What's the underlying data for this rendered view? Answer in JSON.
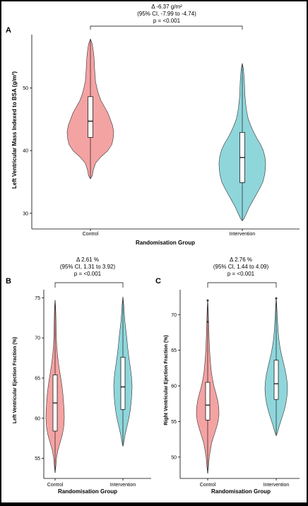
{
  "chart_data": [
    {
      "panel": "A",
      "type": "violin",
      "xlabel": "Randomisation Group",
      "ylabel": "Left Ventricular Mass Indexed to BSA (g/m²)",
      "ylim": [
        27.5,
        58.5
      ],
      "yticks": [
        30,
        40,
        50
      ],
      "categories": [
        "Control",
        "Intervention"
      ],
      "colors": [
        "#F4A3A3",
        "#8FD6DB"
      ],
      "groups": [
        {
          "name": "Control",
          "min": 35.5,
          "q1": 42.1,
          "median": 44.7,
          "q3": 48.6,
          "max": 57.8,
          "density": [
            [
              35.5,
              0.0
            ],
            [
              36.0,
              0.08
            ],
            [
              37,
              0.13
            ],
            [
              38,
              0.22
            ],
            [
              39,
              0.45
            ],
            [
              40,
              0.75
            ],
            [
              41,
              0.92
            ],
            [
              42,
              0.98
            ],
            [
              43,
              1.0
            ],
            [
              44,
              0.95
            ],
            [
              45,
              0.85
            ],
            [
              46,
              0.75
            ],
            [
              47,
              0.6
            ],
            [
              48,
              0.45
            ],
            [
              49,
              0.35
            ],
            [
              50,
              0.28
            ],
            [
              51,
              0.22
            ],
            [
              52,
              0.2
            ],
            [
              53,
              0.18
            ],
            [
              54,
              0.17
            ],
            [
              55,
              0.15
            ],
            [
              56,
              0.12
            ],
            [
              57,
              0.08
            ],
            [
              57.8,
              0.0
            ]
          ]
        },
        {
          "name": "Intervention",
          "min": 28.8,
          "q1": 34.9,
          "median": 38.9,
          "q3": 42.9,
          "max": 53.9,
          "density": [
            [
              28.8,
              0.0
            ],
            [
              29.2,
              0.08
            ],
            [
              30,
              0.18
            ],
            [
              31,
              0.3
            ],
            [
              32,
              0.45
            ],
            [
              33,
              0.6
            ],
            [
              34,
              0.75
            ],
            [
              35,
              0.88
            ],
            [
              36,
              0.95
            ],
            [
              37,
              0.99
            ],
            [
              38,
              1.0
            ],
            [
              39,
              0.97
            ],
            [
              40,
              0.9
            ],
            [
              41,
              0.78
            ],
            [
              42,
              0.62
            ],
            [
              43,
              0.48
            ],
            [
              44,
              0.36
            ],
            [
              45,
              0.26
            ],
            [
              46,
              0.2
            ],
            [
              47,
              0.16
            ],
            [
              48,
              0.13
            ],
            [
              49,
              0.11
            ],
            [
              50,
              0.1
            ],
            [
              51,
              0.09
            ],
            [
              52,
              0.07
            ],
            [
              53,
              0.05
            ],
            [
              53.9,
              0.0
            ]
          ]
        }
      ],
      "annotation": {
        "line1": "Δ -6.37 g/m²",
        "line2": "(95% CI, -7.99 to -4.74)",
        "line3": "p = <0.001"
      }
    },
    {
      "panel": "B",
      "type": "violin",
      "xlabel": "Randomisation Group",
      "ylabel": "Left Ventricular Ejection Fraction (%)",
      "ylim": [
        52.5,
        76.0
      ],
      "yticks": [
        55,
        60,
        65,
        70,
        75
      ],
      "categories": [
        "Control",
        "Intervention"
      ],
      "colors": [
        "#F4A3A3",
        "#8FD6DB"
      ],
      "groups": [
        {
          "name": "Control",
          "min": 53.2,
          "q1": 58.4,
          "median": 61.9,
          "q3": 65.4,
          "max": 74.7,
          "density": [
            [
              53.2,
              0.0
            ],
            [
              54,
              0.08
            ],
            [
              55,
              0.15
            ],
            [
              56,
              0.3
            ],
            [
              57,
              0.55
            ],
            [
              58,
              0.8
            ],
            [
              59,
              0.95
            ],
            [
              60,
              1.0
            ],
            [
              61,
              0.98
            ],
            [
              62,
              0.92
            ],
            [
              63,
              0.85
            ],
            [
              64,
              0.75
            ],
            [
              65,
              0.62
            ],
            [
              66,
              0.48
            ],
            [
              67,
              0.35
            ],
            [
              68,
              0.25
            ],
            [
              69,
              0.18
            ],
            [
              70,
              0.14
            ],
            [
              71,
              0.12
            ],
            [
              72,
              0.1
            ],
            [
              73,
              0.08
            ],
            [
              74,
              0.05
            ],
            [
              74.7,
              0.0
            ]
          ]
        },
        {
          "name": "Intervention",
          "min": 56.5,
          "q1": 61.1,
          "median": 63.9,
          "q3": 67.6,
          "max": 75.1,
          "density": [
            [
              56.5,
              0.0
            ],
            [
              57,
              0.1
            ],
            [
              58,
              0.25
            ],
            [
              59,
              0.45
            ],
            [
              60,
              0.65
            ],
            [
              61,
              0.8
            ],
            [
              62,
              0.9
            ],
            [
              63,
              0.97
            ],
            [
              64,
              1.0
            ],
            [
              65,
              0.95
            ],
            [
              66,
              0.85
            ],
            [
              67,
              0.72
            ],
            [
              68,
              0.6
            ],
            [
              69,
              0.5
            ],
            [
              70,
              0.42
            ],
            [
              71,
              0.32
            ],
            [
              72,
              0.22
            ],
            [
              73,
              0.15
            ],
            [
              74,
              0.1
            ],
            [
              75.1,
              0.0
            ]
          ]
        }
      ],
      "annotation": {
        "line1": "Δ 2.61 %",
        "line2": "(95% CI, 1.31 to 3.92)",
        "line3": "p = <0.001"
      }
    },
    {
      "panel": "C",
      "type": "violin",
      "xlabel": "Randomisation Group",
      "ylabel": "Right Ventricular Ejection Fraction (%)",
      "ylim": [
        47.0,
        73.5
      ],
      "yticks": [
        50,
        55,
        60,
        65,
        70
      ],
      "categories": [
        "Control",
        "Intervention"
      ],
      "colors": [
        "#F4A3A3",
        "#8FD6DB"
      ],
      "groups": [
        {
          "name": "Control",
          "min": 47.7,
          "q1": 55.2,
          "median": 57.3,
          "q3": 60.5,
          "max": 72.0,
          "outliers": [
            72.0,
            69.0
          ],
          "density": [
            [
              47.7,
              0.0
            ],
            [
              48.5,
              0.06
            ],
            [
              50,
              0.14
            ],
            [
              52,
              0.35
            ],
            [
              53,
              0.55
            ],
            [
              54,
              0.75
            ],
            [
              55,
              0.92
            ],
            [
              56,
              1.0
            ],
            [
              57,
              0.98
            ],
            [
              58,
              0.88
            ],
            [
              59,
              0.72
            ],
            [
              60,
              0.55
            ],
            [
              61,
              0.42
            ],
            [
              62,
              0.32
            ],
            [
              63,
              0.26
            ],
            [
              64,
              0.21
            ],
            [
              65,
              0.17
            ],
            [
              66,
              0.14
            ],
            [
              67,
              0.12
            ],
            [
              68,
              0.1
            ],
            [
              69,
              0.08
            ],
            [
              70,
              0.06
            ],
            [
              71,
              0.04
            ],
            [
              72,
              0.0
            ]
          ]
        },
        {
          "name": "Intervention",
          "min": 53.0,
          "q1": 58.1,
          "median": 60.3,
          "q3": 63.6,
          "max": 72.3,
          "outliers": [
            72.3
          ],
          "density": [
            [
              53.0,
              0.0
            ],
            [
              53.5,
              0.12
            ],
            [
              54.5,
              0.3
            ],
            [
              55.5,
              0.5
            ],
            [
              56.5,
              0.7
            ],
            [
              57.5,
              0.85
            ],
            [
              58.5,
              0.95
            ],
            [
              59.5,
              1.0
            ],
            [
              60.5,
              0.97
            ],
            [
              61.5,
              0.88
            ],
            [
              62.5,
              0.75
            ],
            [
              63.5,
              0.6
            ],
            [
              64.5,
              0.45
            ],
            [
              65.5,
              0.33
            ],
            [
              66.5,
              0.24
            ],
            [
              67.5,
              0.18
            ],
            [
              68.5,
              0.14
            ],
            [
              69.5,
              0.1
            ],
            [
              70.5,
              0.07
            ],
            [
              71.5,
              0.04
            ],
            [
              72.3,
              0.0
            ]
          ]
        }
      ],
      "annotation": {
        "line1": "Δ 2.76 %",
        "line2": "(95% CI, 1.44 to 4.09)",
        "line3": "p = <0.001"
      }
    }
  ]
}
